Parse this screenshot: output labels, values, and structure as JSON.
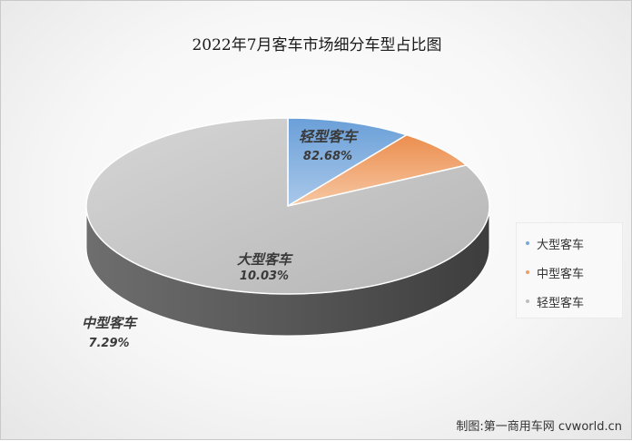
{
  "chart_data": {
    "type": "pie",
    "title": "2022年7月客车市场细分车型占比图",
    "categories": [
      "大型客车",
      "中型客车",
      "轻型客车"
    ],
    "values": [
      10.03,
      7.29,
      82.68
    ],
    "value_labels": [
      "10.03%",
      "7.29%",
      "82.68%"
    ],
    "colors": [
      "#7aa7db",
      "#ec9e6a",
      "#bdbdbd"
    ],
    "legend": "right",
    "three_d": true
  },
  "credit": "制图:第一商用车网 cvworld.cn"
}
